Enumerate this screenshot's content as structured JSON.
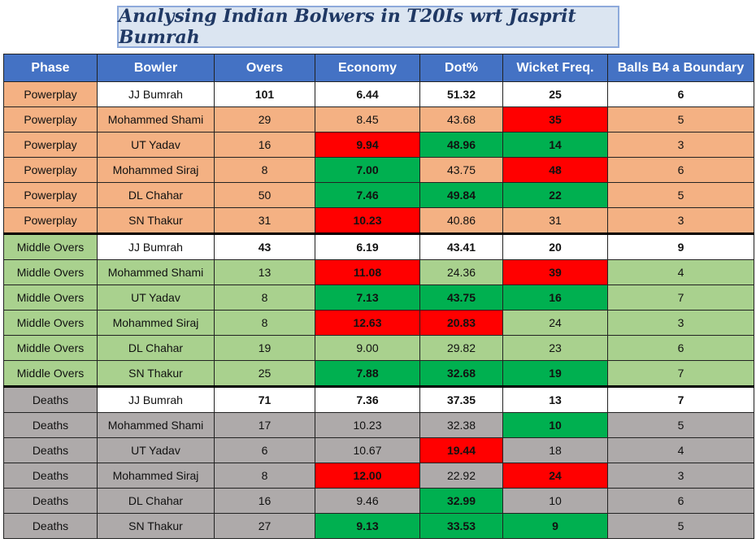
{
  "title": "Analysing Indian Bolwers in T20Is wrt Jasprit Bumrah",
  "colors": {
    "header": "#4472c4",
    "powerplay": "#f4b183",
    "middle_overs": "#a9d18e",
    "deaths": "#aeaaaa",
    "worse": "#ff0000",
    "better": "#00b050"
  },
  "chart_data": {
    "type": "table",
    "columns": [
      "Phase",
      "Bowler",
      "Overs",
      "Economy",
      "Dot%",
      "Wicket Freq.",
      "Balls B4 a Boundary"
    ],
    "rows": [
      {
        "phase": "Powerplay",
        "bowler": "JJ Bumrah",
        "overs": "101",
        "economy": "6.44",
        "dot": "51.32",
        "wkt": "25",
        "b4": "6",
        "hl": {}
      },
      {
        "phase": "Powerplay",
        "bowler": "Mohammed Shami",
        "overs": "29",
        "economy": "8.45",
        "dot": "43.68",
        "wkt": "35",
        "b4": "5",
        "hl": {
          "wkt": "red"
        }
      },
      {
        "phase": "Powerplay",
        "bowler": "UT Yadav",
        "overs": "16",
        "economy": "9.94",
        "dot": "48.96",
        "wkt": "14",
        "b4": "3",
        "hl": {
          "economy": "red",
          "dot": "green-dark",
          "wkt": "green"
        }
      },
      {
        "phase": "Powerplay",
        "bowler": "Mohammed Siraj",
        "overs": "8",
        "economy": "7.00",
        "dot": "43.75",
        "wkt": "48",
        "b4": "6",
        "hl": {
          "economy": "green",
          "wkt": "red"
        }
      },
      {
        "phase": "Powerplay",
        "bowler": "DL Chahar",
        "overs": "50",
        "economy": "7.46",
        "dot": "49.84",
        "wkt": "22",
        "b4": "5",
        "hl": {
          "economy": "green",
          "dot": "green-dark",
          "wkt": "green"
        }
      },
      {
        "phase": "Powerplay",
        "bowler": "SN Thakur",
        "overs": "31",
        "economy": "10.23",
        "dot": "40.86",
        "wkt": "31",
        "b4": "3",
        "hl": {
          "economy": "red"
        }
      },
      {
        "phase": "Middle Overs",
        "bowler": "JJ Bumrah",
        "overs": "43",
        "economy": "6.19",
        "dot": "43.41",
        "wkt": "20",
        "b4": "9",
        "hl": {}
      },
      {
        "phase": "Middle Overs",
        "bowler": "Mohammed Shami",
        "overs": "13",
        "economy": "11.08",
        "dot": "24.36",
        "wkt": "39",
        "b4": "4",
        "hl": {
          "economy": "red",
          "wkt": "red"
        }
      },
      {
        "phase": "Middle Overs",
        "bowler": "UT Yadav",
        "overs": "8",
        "economy": "7.13",
        "dot": "43.75",
        "wkt": "16",
        "b4": "7",
        "hl": {
          "economy": "green",
          "dot": "green",
          "wkt": "green"
        }
      },
      {
        "phase": "Middle Overs",
        "bowler": "Mohammed Siraj",
        "overs": "8",
        "economy": "12.63",
        "dot": "20.83",
        "wkt": "24",
        "b4": "3",
        "hl": {
          "economy": "red",
          "dot": "red"
        }
      },
      {
        "phase": "Middle Overs",
        "bowler": "DL Chahar",
        "overs": "19",
        "economy": "9.00",
        "dot": "29.82",
        "wkt": "23",
        "b4": "6",
        "hl": {}
      },
      {
        "phase": "Middle Overs",
        "bowler": "SN Thakur",
        "overs": "25",
        "economy": "7.88",
        "dot": "32.68",
        "wkt": "19",
        "b4": "7",
        "hl": {
          "economy": "green",
          "dot": "green",
          "wkt": "green"
        }
      },
      {
        "phase": "Deaths",
        "bowler": "JJ Bumrah",
        "overs": "71",
        "economy": "7.36",
        "dot": "37.35",
        "wkt": "13",
        "b4": "7",
        "hl": {}
      },
      {
        "phase": "Deaths",
        "bowler": "Mohammed Shami",
        "overs": "17",
        "economy": "10.23",
        "dot": "32.38",
        "wkt": "10",
        "b4": "5",
        "hl": {
          "wkt": "green"
        }
      },
      {
        "phase": "Deaths",
        "bowler": "UT Yadav",
        "overs": "6",
        "economy": "10.67",
        "dot": "19.44",
        "wkt": "18",
        "b4": "4",
        "hl": {
          "dot": "red"
        }
      },
      {
        "phase": "Deaths",
        "bowler": "Mohammed Siraj",
        "overs": "8",
        "economy": "12.00",
        "dot": "22.92",
        "wkt": "24",
        "b4": "3",
        "hl": {
          "economy": "red",
          "wkt": "red"
        }
      },
      {
        "phase": "Deaths",
        "bowler": "DL Chahar",
        "overs": "16",
        "economy": "9.46",
        "dot": "32.99",
        "wkt": "10",
        "b4": "6",
        "hl": {
          "dot": "green-dark"
        }
      },
      {
        "phase": "Deaths",
        "bowler": "SN Thakur",
        "overs": "27",
        "economy": "9.13",
        "dot": "33.53",
        "wkt": "9",
        "b4": "5",
        "hl": {
          "economy": "green",
          "dot": "green-dark",
          "wkt": "green"
        }
      }
    ]
  }
}
